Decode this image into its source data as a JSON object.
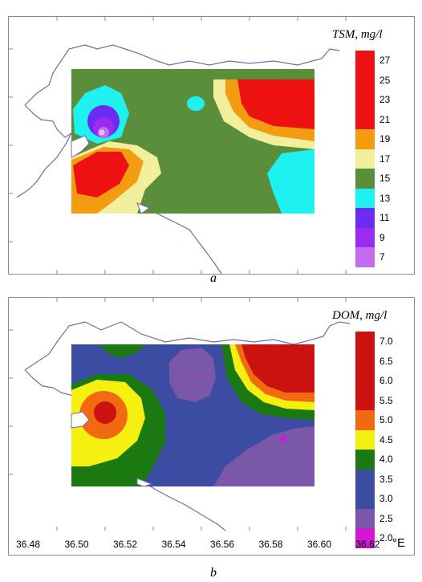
{
  "figure": {
    "panels": [
      {
        "letter": "a",
        "legend_title": "TSM, mg/l",
        "legend_labels": [
          "27",
          "25",
          "23",
          "21",
          "19",
          "17",
          "15",
          "13",
          "11",
          "9",
          "7"
        ],
        "legend_colors": [
          "#ee1111",
          "#ee1111",
          "#ee1111",
          "#ee1111",
          "#f39c11",
          "#f1ee9c",
          "#5a8e3a",
          "#1ff1f1",
          "#6b2bf0",
          "#9b2bf0",
          "#c36cf0"
        ],
        "colors": {
          "red": "#ee1111",
          "orange": "#f39c11",
          "pale_yellow": "#f1ee9c",
          "green": "#5a8e3a",
          "cyan": "#1ff1f1",
          "blue_violet": "#6b2bf0",
          "violet": "#9b2bf0",
          "light_violet": "#c36cf0",
          "coast": "#7a6aa0"
        }
      },
      {
        "letter": "b",
        "legend_title": "DOM, mg/l",
        "legend_labels": [
          "7.0",
          "6.5",
          "6.0",
          "5.5",
          "5.0",
          "4.5",
          "4.0",
          "3.5",
          "3.0",
          "2.5",
          "2.0"
        ],
        "legend_colors": [
          "#cc1111",
          "#cc1111",
          "#cc1111",
          "#cc1111",
          "#f16a11",
          "#f6f011",
          "#1a7a11",
          "#3d4ca3",
          "#3d4ca3",
          "#7a57a8",
          "#d316d3"
        ],
        "colors": {
          "red": "#cc1111",
          "orange": "#f16a11",
          "yellow": "#f6f011",
          "green": "#1a7a11",
          "blue": "#3d4ca3",
          "purple": "#7a57a8",
          "magenta": "#d316d3",
          "coast": "#7a6aa0"
        }
      }
    ],
    "x_axis": {
      "ticks": [
        "36.48",
        "36.50",
        "36.52",
        "36.54",
        "36.56",
        "36.58",
        "36.60",
        "36.62"
      ],
      "unit": "°E"
    }
  }
}
